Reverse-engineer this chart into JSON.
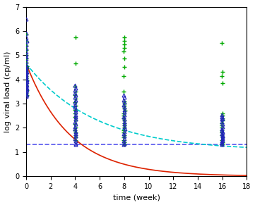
{
  "title": "",
  "xlabel": "time (week)",
  "ylabel": "log viral load (cp/ml)",
  "xlim": [
    0,
    18
  ],
  "ylim": [
    0,
    7
  ],
  "xticks": [
    0,
    2,
    4,
    6,
    8,
    10,
    12,
    14,
    16,
    18
  ],
  "yticks": [
    0,
    1,
    2,
    3,
    4,
    5,
    6,
    7
  ],
  "groupA_times": [
    0,
    4,
    8,
    16
  ],
  "groupB_times": [
    0,
    4,
    8,
    16
  ],
  "groupA_data": {
    "t0": [
      6.5,
      5.9,
      5.75,
      5.6,
      5.45,
      5.3,
      5.15,
      5.05,
      4.95,
      4.85,
      4.75,
      4.65,
      4.55,
      4.5,
      4.45,
      4.4,
      4.35,
      4.3,
      4.25,
      4.2,
      4.15,
      4.1,
      4.05,
      4.0,
      3.95,
      3.9,
      3.85,
      3.8,
      3.75,
      3.7,
      3.65,
      3.6,
      3.55,
      3.5,
      3.45,
      3.4,
      3.35,
      3.3
    ],
    "t4": [
      3.75,
      3.65,
      3.55,
      3.45,
      3.35,
      3.25,
      3.15,
      3.05,
      2.95,
      2.85,
      2.75,
      2.65,
      2.55,
      2.45,
      2.35,
      2.25,
      2.15,
      2.05,
      1.95,
      1.85,
      1.75,
      1.65,
      1.55,
      1.45,
      1.35,
      1.3
    ],
    "t8": [
      3.35,
      3.25,
      3.15,
      3.05,
      2.95,
      2.85,
      2.75,
      2.65,
      2.55,
      2.45,
      2.35,
      2.25,
      2.15,
      2.05,
      1.95,
      1.85,
      1.75,
      1.65,
      1.55,
      1.45,
      1.35,
      1.3
    ],
    "t16": [
      2.55,
      2.45,
      2.4,
      2.35,
      2.25,
      2.15,
      2.05,
      1.95,
      1.9,
      1.85,
      1.8,
      1.75,
      1.7,
      1.65,
      1.6,
      1.55,
      1.5,
      1.45,
      1.4,
      1.35,
      1.3
    ]
  },
  "groupB_data": {
    "t0": [
      5.85,
      5.6,
      5.4,
      5.2,
      5.0,
      4.85,
      4.7,
      4.55,
      4.45,
      4.35,
      4.25,
      4.15,
      4.05,
      3.95,
      3.85,
      3.75,
      3.65,
      3.55,
      3.45,
      3.35
    ],
    "t4": [
      5.75,
      4.65,
      3.7,
      3.5,
      3.35,
      3.2,
      3.05,
      2.9,
      2.75,
      2.6,
      2.45,
      2.3,
      2.15,
      2.0,
      1.9,
      1.8,
      1.7,
      1.6,
      1.5
    ],
    "t8": [
      5.75,
      5.6,
      5.45,
      5.3,
      5.15,
      4.85,
      4.5,
      4.15,
      3.5,
      3.1,
      3.0,
      2.9,
      2.8,
      2.7,
      2.6,
      2.5,
      2.4,
      2.3,
      2.2,
      2.1,
      2.0,
      1.9,
      1.8,
      1.7,
      1.6,
      1.5,
      1.4,
      1.3
    ],
    "t16": [
      5.5,
      4.3,
      4.15,
      3.85,
      2.6,
      2.5,
      2.4,
      2.3,
      2.2,
      2.1,
      2.0,
      1.9,
      1.8,
      1.7,
      1.6,
      1.5,
      1.4,
      1.35,
      1.3
    ]
  },
  "curve_A_params": {
    "y0": 4.65,
    "plateau": 0.0,
    "k": 0.28
  },
  "curve_B_params": {
    "y0": 4.65,
    "plateau": 1.05,
    "k": 0.18
  },
  "detection_limit": 1.3,
  "color_A_marker": "#2222bb",
  "color_B_marker": "#00aa00",
  "color_curve_A": "#dd2200",
  "color_curve_B": "#00cccc",
  "color_detection": "#5555ee",
  "marker_A": "^",
  "marker_B": "+",
  "markersize_A": 3.5,
  "markersize_B": 5,
  "scatter_jitter_A": 0.04,
  "scatter_jitter_B": 0.04,
  "figsize": [
    3.61,
    2.91
  ],
  "dpi": 100
}
